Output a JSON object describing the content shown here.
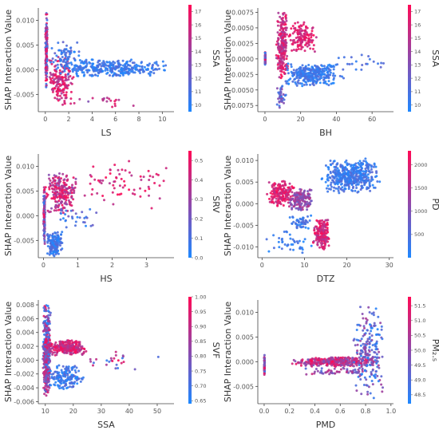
{
  "colors": {
    "low": "#1e88ff",
    "high": "#ff0a56"
  },
  "chart_data": [
    {
      "type": "scatter",
      "xlabel": "LS",
      "ylabel": "SHAP  Interaction  Value",
      "xticks": [
        "0",
        "2",
        "4",
        "6",
        "8",
        "10"
      ],
      "xlim": [
        -0.6,
        11.0
      ],
      "yticks": [
        "0.010",
        "0.005",
        "0.000",
        "-0.005"
      ],
      "ylim": [
        -0.0085,
        0.0125
      ],
      "color_feature": "SSA",
      "cbar_ticks": [
        "17",
        "16",
        "15",
        "14",
        "13",
        "12",
        "11",
        "10"
      ],
      "cbar_range": [
        9.5,
        17.5
      ],
      "clusters": [
        {
          "x": [
            0.0,
            0.18
          ],
          "y": [
            -0.004,
            0.012
          ],
          "c": [
            10,
            17.5
          ],
          "n": 160
        },
        {
          "x": [
            0.1,
            2.5
          ],
          "y": [
            -0.0075,
            0.003
          ],
          "c": [
            14,
            17.5
          ],
          "n": 160
        },
        {
          "x": [
            0.5,
            10.5
          ],
          "y": [
            -0.0015,
            0.0022
          ],
          "c": [
            9.5,
            11.5
          ],
          "n": 340
        },
        {
          "x": [
            0.2,
            3.0
          ],
          "y": [
            0.0,
            0.006
          ],
          "c": [
            9.5,
            12
          ],
          "n": 60
        },
        {
          "x": [
            2.0,
            8.0
          ],
          "y": [
            -0.008,
            -0.004
          ],
          "c": [
            13,
            17
          ],
          "n": 20
        }
      ]
    },
    {
      "type": "scatter",
      "xlabel": "BH",
      "ylabel": "SHAP  Interaction  Value",
      "xticks": [
        "0",
        "20",
        "40",
        "60"
      ],
      "xlim": [
        -4,
        72
      ],
      "yticks": [
        "0.0075",
        "0.0050",
        "0.0025",
        "0.0000",
        "-0.0025",
        "-0.0050",
        "-0.0075"
      ],
      "ylim": [
        -0.0085,
        0.0082
      ],
      "color_feature": "SSA",
      "cbar_ticks": [
        "17",
        "16",
        "15",
        "14",
        "13",
        "12",
        "11",
        "10"
      ],
      "cbar_range": [
        9.5,
        17.5
      ],
      "clusters": [
        {
          "x": [
            0,
            0.3
          ],
          "y": [
            -0.0012,
            0.0012
          ],
          "c": [
            9.5,
            17.5
          ],
          "n": 60
        },
        {
          "x": [
            6,
            13
          ],
          "y": [
            -0.004,
            0.008
          ],
          "c": [
            14,
            17.5
          ],
          "n": 230
        },
        {
          "x": [
            12,
            30
          ],
          "y": [
            0.001,
            0.006
          ],
          "c": [
            15,
            17.5
          ],
          "n": 140
        },
        {
          "x": [
            10,
            45
          ],
          "y": [
            -0.0045,
            -0.0005
          ],
          "c": [
            9.5,
            11.5
          ],
          "n": 320
        },
        {
          "x": [
            6,
            12
          ],
          "y": [
            -0.008,
            -0.004
          ],
          "c": [
            10,
            14
          ],
          "n": 40
        },
        {
          "x": [
            40,
            68
          ],
          "y": [
            -0.002,
            0.001
          ],
          "c": [
            10,
            12
          ],
          "n": 20
        }
      ]
    },
    {
      "type": "scatter",
      "xlabel": "HS",
      "ylabel": "SHAP  Interaction  Value",
      "xticks": [
        "0",
        "1",
        "2",
        "3"
      ],
      "xlim": [
        -0.15,
        3.8
      ],
      "yticks": [
        "0.010",
        "0.005",
        "0.000",
        "-0.005"
      ],
      "ylim": [
        -0.0085,
        0.0125
      ],
      "color_feature": "SRV",
      "cbar_ticks": [
        "0.5",
        "0.4",
        "0.3",
        "0.2",
        "0.1",
        "0.0"
      ],
      "cbar_range": [
        0.0,
        0.55
      ],
      "clusters": [
        {
          "x": [
            0.0,
            0.05
          ],
          "y": [
            -0.006,
            0.006
          ],
          "c": [
            0.0,
            0.55
          ],
          "n": 140
        },
        {
          "x": [
            0.05,
            1.0
          ],
          "y": [
            0.0,
            0.009
          ],
          "c": [
            0.25,
            0.55
          ],
          "n": 220
        },
        {
          "x": [
            1.0,
            3.7
          ],
          "y": [
            0.001,
            0.012
          ],
          "c": [
            0.35,
            0.55
          ],
          "n": 70
        },
        {
          "x": [
            0.05,
            0.6
          ],
          "y": [
            -0.0085,
            -0.003
          ],
          "c": [
            0.0,
            0.15
          ],
          "n": 160
        },
        {
          "x": [
            0.2,
            1.6
          ],
          "y": [
            -0.003,
            0.002
          ],
          "c": [
            0.0,
            0.2
          ],
          "n": 30
        }
      ]
    },
    {
      "type": "scatter",
      "xlabel": "DTZ",
      "ylabel": "SHAP  Interaction  Value",
      "xticks": [
        "0",
        "10",
        "20",
        "30"
      ],
      "xlim": [
        -1,
        31
      ],
      "yticks": [
        "0.010",
        "0.005",
        "0.000",
        "-0.005",
        "-0.010"
      ],
      "ylim": [
        -0.0125,
        0.0115
      ],
      "color_feature": "PD",
      "cbar_ticks": [
        "2000",
        "1500",
        "1000",
        "500"
      ],
      "cbar_range": [
        0,
        2300
      ],
      "clusters": [
        {
          "x": [
            1,
            8
          ],
          "y": [
            -0.001,
            0.006
          ],
          "c": [
            1500,
            2300
          ],
          "n": 180
        },
        {
          "x": [
            6,
            12
          ],
          "y": [
            -0.002,
            0.004
          ],
          "c": [
            800,
            1600
          ],
          "n": 150
        },
        {
          "x": [
            12,
            16
          ],
          "y": [
            -0.011,
            -0.003
          ],
          "c": [
            1400,
            2300
          ],
          "n": 180
        },
        {
          "x": [
            14,
            28
          ],
          "y": [
            0.002,
            0.0105
          ],
          "c": [
            0,
            600
          ],
          "n": 450
        },
        {
          "x": [
            1,
            12
          ],
          "y": [
            -0.012,
            -0.006
          ],
          "c": [
            0,
            500
          ],
          "n": 40
        },
        {
          "x": [
            6,
            12
          ],
          "y": [
            -0.006,
            -0.002
          ],
          "c": [
            0,
            600
          ],
          "n": 50
        }
      ]
    },
    {
      "type": "scatter",
      "xlabel": "SSA",
      "ylabel": "SHAP  Interaction  Value",
      "xticks": [
        "10",
        "20",
        "30",
        "40",
        "50"
      ],
      "xlim": [
        7.5,
        56
      ],
      "yticks": [
        "0.008",
        "0.006",
        "0.004",
        "0.002",
        "0.000",
        "-0.002",
        "-0.004",
        "-0.006"
      ],
      "ylim": [
        -0.0063,
        0.0087
      ],
      "color_feature": "SVF",
      "cbar_ticks": [
        "1.00",
        "0.95",
        "0.90",
        "0.85",
        "0.80",
        "0.75",
        "0.70",
        "0.65"
      ],
      "cbar_range": [
        0.64,
        1.0
      ],
      "clusters": [
        {
          "x": [
            9,
            12
          ],
          "y": [
            -0.006,
            0.0085
          ],
          "c": [
            0.64,
            1.0
          ],
          "n": 420
        },
        {
          "x": [
            11,
            25
          ],
          "y": [
            0.0005,
            0.003
          ],
          "c": [
            0.84,
            1.0
          ],
          "n": 240
        },
        {
          "x": [
            11,
            24
          ],
          "y": [
            -0.0045,
            -0.0005
          ],
          "c": [
            0.64,
            0.74
          ],
          "n": 160
        },
        {
          "x": [
            20,
            53
          ],
          "y": [
            -0.002,
            0.002
          ],
          "c": [
            0.64,
            1.0
          ],
          "n": 25
        }
      ]
    },
    {
      "type": "scatter",
      "xlabel": "PMD",
      "ylabel": "SHAP  Interaction  Value",
      "xticks": [
        "0.0",
        "0.2",
        "0.4",
        "0.6",
        "0.8",
        "1.0"
      ],
      "xlim": [
        -0.05,
        1.02
      ],
      "yticks": [
        "0.010",
        "0.005",
        "0.000",
        "-0.005"
      ],
      "ylim": [
        -0.0085,
        0.0125
      ],
      "color_feature": "PM₂.₅",
      "cbar_ticks": [
        "51.5",
        "51.0",
        "50.5",
        "50.0",
        "49.5",
        "49.0",
        "48.5"
      ],
      "cbar_range": [
        48.2,
        51.8
      ],
      "clusters": [
        {
          "x": [
            0.0,
            0.005
          ],
          "y": [
            -0.003,
            0.0015
          ],
          "c": [
            48.2,
            51.8
          ],
          "n": 60
        },
        {
          "x": [
            0.2,
            0.9
          ],
          "y": [
            -0.001,
            0.001
          ],
          "c": [
            49.5,
            51.8
          ],
          "n": 350
        },
        {
          "x": [
            0.7,
            0.95
          ],
          "y": [
            -0.008,
            0.012
          ],
          "c": [
            48.2,
            50.5
          ],
          "n": 200
        },
        {
          "x": [
            0.3,
            0.9
          ],
          "y": [
            -0.003,
            -0.001
          ],
          "c": [
            49.0,
            51.0
          ],
          "n": 60
        }
      ]
    }
  ]
}
